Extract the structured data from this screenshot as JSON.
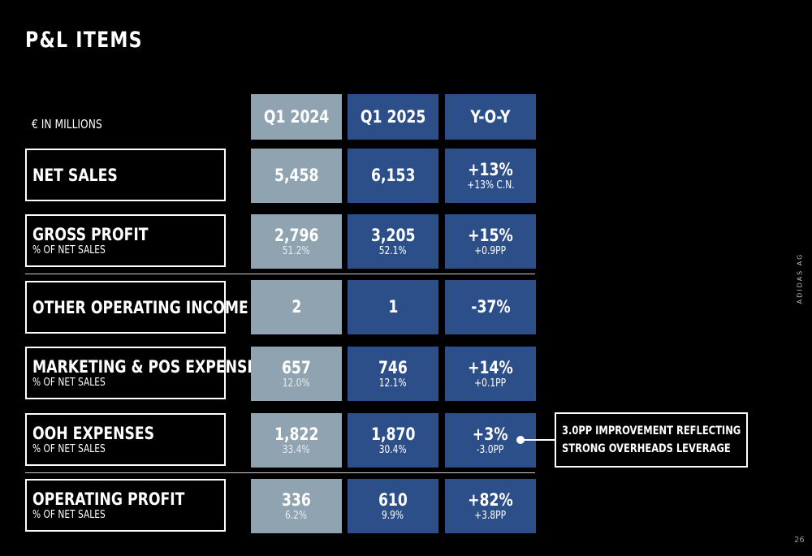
{
  "title": "P&L ITEMS",
  "unit_label": "€ IN MILLIONS",
  "columns": [
    "Q1 2024",
    "Q1 2025",
    "Y-O-Y"
  ],
  "rows": [
    {
      "label": "NET SALES",
      "sublabel": "",
      "q1_2024": "5,458",
      "q1_2024_sub": "",
      "q1_2025": "6,153",
      "q1_2025_sub": "",
      "yoy": "+13%",
      "yoy_sub": "+13% C.N."
    },
    {
      "label": "GROSS PROFIT",
      "sublabel": "% OF NET SALES",
      "q1_2024": "2,796",
      "q1_2024_sub": "51.2%",
      "q1_2025": "3,205",
      "q1_2025_sub": "52.1%",
      "yoy": "+15%",
      "yoy_sub": "+0.9PP"
    },
    {
      "label": "OTHER OPERATING INCOME",
      "sublabel": "",
      "q1_2024": "2",
      "q1_2024_sub": "",
      "q1_2025": "1",
      "q1_2025_sub": "",
      "yoy": "-37%",
      "yoy_sub": ""
    },
    {
      "label": "MARKETING & POS EXPENSES",
      "sublabel": "% OF NET SALES",
      "q1_2024": "657",
      "q1_2024_sub": "12.0%",
      "q1_2025": "746",
      "q1_2025_sub": "12.1%",
      "yoy": "+14%",
      "yoy_sub": "+0.1PP"
    },
    {
      "label": "OOH EXPENSES",
      "sublabel": "% OF NET SALES",
      "q1_2024": "1,822",
      "q1_2024_sub": "33.4%",
      "q1_2025": "1,870",
      "q1_2025_sub": "30.4%",
      "yoy": "+3%",
      "yoy_sub": "-3.0PP"
    },
    {
      "label": "OPERATING PROFIT",
      "sublabel": "% OF NET SALES",
      "q1_2024": "336",
      "q1_2024_sub": "6.2%",
      "q1_2025": "610",
      "q1_2025_sub": "9.9%",
      "yoy": "+82%",
      "yoy_sub": "+3.8PP"
    }
  ],
  "callout": {
    "line1": "3.0PP IMPROVEMENT REFLECTING",
    "line2": "STRONG OVERHEADS LEVERAGE"
  },
  "side_label": "ADIDAS AG",
  "page_number": "26",
  "colors": {
    "background": "#000000",
    "q1_2024_fill": "#8fa3b0",
    "q1_2025_fill": "#2c4f8a",
    "text": "#ffffff"
  }
}
